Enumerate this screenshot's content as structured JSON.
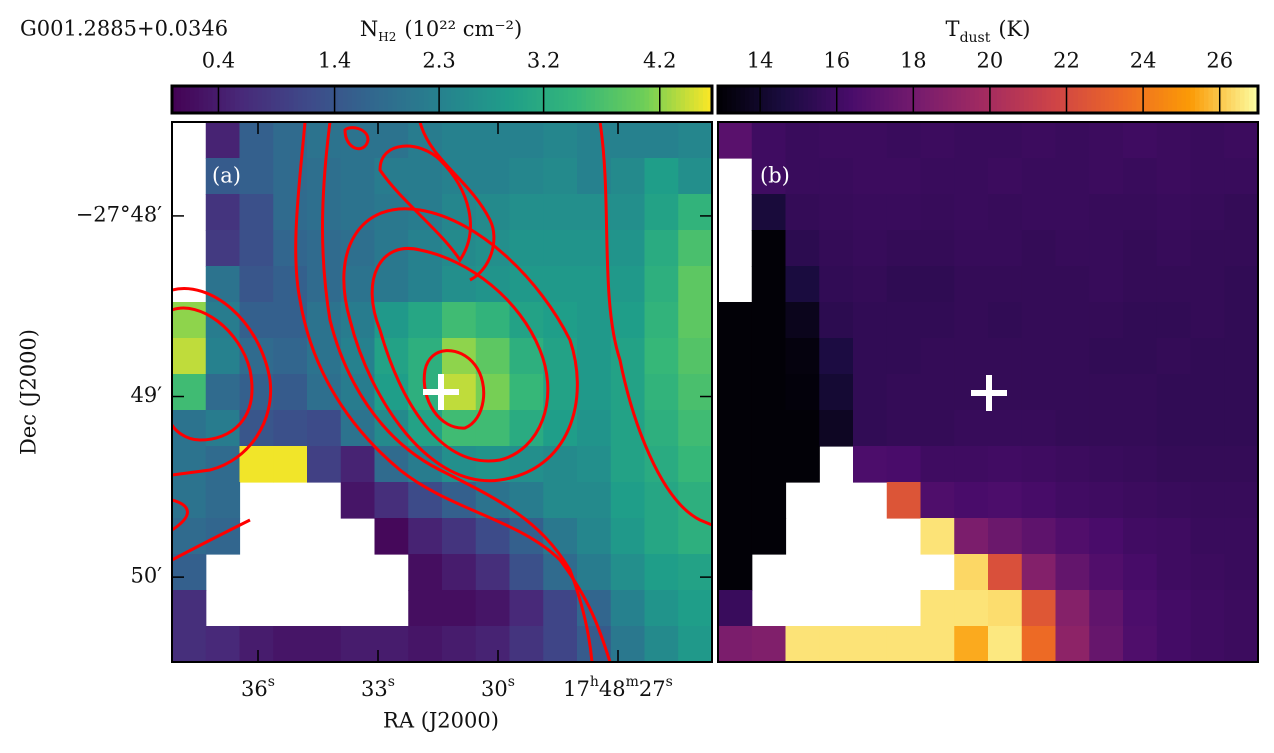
{
  "chart_data": [
    {
      "type": "heatmap",
      "title": "G001.2885+0.0346",
      "xlabel": "RA (J2000)",
      "ylabel": "Dec (J2000)",
      "panel_label": "(a)",
      "colormap": "viridis",
      "colorbar_label": {
        "symbol": "N",
        "subscript": "H2",
        "text": "(10²² cm⁻²)"
      },
      "vlim": [
        0.0,
        4.65
      ],
      "colorbar_ticks": [
        0.4,
        1.4,
        2.3,
        3.2,
        4.2
      ],
      "xlim": [
        38.15,
        24.65
      ],
      "ylim": [
        -1670.47,
        -1667.48
      ],
      "xticks": [
        {
          "value": 36,
          "label": "36s"
        },
        {
          "value": 33,
          "label": "33s"
        },
        {
          "value": 30,
          "label": "30s"
        },
        {
          "value": 27,
          "label": "17h48m27s"
        }
      ],
      "yticks": [
        {
          "value": -1668,
          "label": "−27°48′"
        },
        {
          "value": -1669,
          "label": "49′"
        },
        {
          "value": -1670,
          "label": "50′"
        }
      ],
      "z": [
        [
          null,
          0.5,
          1.6,
          1.8,
          2.0,
          2.0,
          2.0,
          2.2,
          2.3,
          2.3,
          2.3,
          2.4,
          2.3,
          2.3,
          2.3,
          2.4
        ],
        [
          null,
          1.5,
          1.6,
          1.8,
          1.9,
          2.0,
          2.2,
          2.2,
          2.3,
          2.3,
          2.4,
          2.5,
          2.3,
          2.5,
          2.9,
          2.6
        ],
        [
          null,
          0.8,
          1.3,
          1.8,
          1.9,
          2.0,
          2.1,
          2.2,
          2.4,
          2.5,
          2.6,
          2.6,
          2.6,
          2.6,
          3.0,
          3.4
        ],
        [
          null,
          0.9,
          1.3,
          1.7,
          1.8,
          1.9,
          2.1,
          2.3,
          2.5,
          2.6,
          2.7,
          2.7,
          2.7,
          2.7,
          3.2,
          3.7
        ],
        [
          null,
          2.0,
          1.4,
          1.6,
          1.8,
          2.0,
          2.1,
          2.3,
          2.6,
          2.7,
          2.8,
          2.8,
          2.8,
          2.8,
          3.3,
          3.9
        ],
        [
          4.2,
          2.2,
          1.6,
          1.6,
          2.0,
          2.2,
          2.8,
          3.1,
          3.6,
          3.4,
          3.0,
          2.9,
          2.8,
          2.9,
          3.4,
          3.9
        ],
        [
          4.4,
          2.3,
          1.8,
          1.7,
          2.0,
          2.3,
          3.0,
          3.3,
          4.2,
          3.9,
          3.3,
          3.0,
          2.8,
          3.0,
          3.5,
          3.8
        ],
        [
          3.6,
          1.8,
          1.6,
          1.5,
          1.9,
          2.2,
          2.9,
          3.3,
          4.4,
          4.1,
          3.5,
          3.0,
          2.8,
          3.0,
          3.4,
          3.7
        ],
        [
          2.0,
          2.2,
          1.4,
          1.3,
          1.2,
          2.0,
          2.5,
          3.0,
          3.6,
          3.6,
          3.2,
          2.9,
          2.7,
          3.0,
          3.3,
          3.6
        ],
        [
          2.0,
          1.8,
          4.6,
          4.6,
          1.0,
          0.5,
          1.8,
          2.2,
          2.6,
          2.7,
          2.6,
          2.5,
          2.6,
          3.0,
          3.2,
          3.5
        ],
        [
          2.0,
          1.8,
          null,
          null,
          null,
          0.3,
          0.7,
          1.2,
          1.6,
          2.0,
          2.2,
          2.5,
          2.5,
          2.9,
          3.1,
          3.3
        ],
        [
          1.8,
          1.7,
          null,
          null,
          null,
          null,
          0.1,
          0.5,
          0.8,
          1.2,
          1.6,
          2.1,
          2.4,
          2.8,
          3.1,
          3.3
        ],
        [
          1.6,
          null,
          null,
          null,
          null,
          null,
          null,
          0.2,
          0.4,
          0.7,
          1.3,
          1.8,
          2.2,
          2.6,
          2.9,
          3.0
        ],
        [
          0.7,
          null,
          null,
          null,
          null,
          null,
          null,
          0.2,
          0.2,
          0.3,
          0.6,
          1.1,
          1.7,
          2.3,
          2.7,
          2.9
        ],
        [
          0.7,
          0.6,
          0.4,
          0.3,
          0.3,
          0.4,
          0.4,
          0.3,
          0.4,
          0.5,
          0.8,
          1.1,
          1.5,
          2.1,
          2.5,
          2.8
        ]
      ]
    },
    {
      "type": "heatmap",
      "panel_label": "(b)",
      "colormap": "inferno",
      "colorbar_label": {
        "symbol": "T",
        "subscript": "dust",
        "text": "(K)"
      },
      "vlim": [
        12.9,
        27.0
      ],
      "colorbar_ticks": [
        14,
        16,
        18,
        20,
        22,
        24,
        26
      ],
      "z": [
        [
          17.0,
          16.0,
          15.8,
          15.9,
          15.9,
          15.8,
          15.9,
          15.8,
          15.8,
          15.9,
          15.8,
          15.9,
          16.0,
          15.9,
          15.8,
          15.9
        ],
        [
          null,
          16.0,
          15.8,
          15.8,
          15.9,
          15.9,
          15.8,
          15.8,
          15.9,
          15.8,
          15.8,
          15.9,
          15.8,
          15.9,
          15.8,
          15.8
        ],
        [
          null,
          14.5,
          15.6,
          15.7,
          15.8,
          15.8,
          15.7,
          15.8,
          15.7,
          15.8,
          15.8,
          15.7,
          15.7,
          15.8,
          15.7,
          15.6
        ],
        [
          null,
          13.0,
          15.3,
          15.6,
          15.7,
          15.6,
          15.6,
          15.7,
          15.7,
          15.6,
          15.7,
          15.7,
          15.6,
          15.7,
          15.6,
          15.6
        ],
        [
          null,
          13.0,
          14.6,
          15.5,
          15.6,
          15.4,
          15.4,
          15.6,
          15.6,
          15.6,
          15.6,
          15.7,
          15.6,
          15.6,
          15.6,
          15.5
        ],
        [
          13.0,
          13.0,
          13.6,
          15.3,
          15.5,
          15.5,
          15.5,
          15.6,
          15.5,
          15.6,
          15.6,
          15.6,
          15.5,
          15.5,
          15.6,
          15.5
        ],
        [
          13.0,
          13.0,
          13.2,
          14.7,
          15.5,
          15.5,
          15.6,
          15.6,
          15.6,
          15.6,
          15.6,
          15.5,
          15.5,
          15.6,
          15.5,
          15.5
        ],
        [
          13.0,
          13.0,
          13.1,
          14.3,
          15.5,
          15.6,
          15.6,
          15.6,
          15.6,
          15.6,
          15.6,
          15.6,
          15.6,
          15.5,
          15.5,
          15.5
        ],
        [
          13.0,
          13.0,
          13.0,
          13.8,
          15.5,
          15.6,
          15.6,
          15.7,
          15.7,
          15.7,
          15.6,
          15.6,
          15.6,
          15.5,
          15.5,
          15.5
        ],
        [
          13.0,
          13.0,
          13.0,
          null,
          16.5,
          16.4,
          16.0,
          16.0,
          16.1,
          16.0,
          15.9,
          15.8,
          15.7,
          15.6,
          15.6,
          15.6
        ],
        [
          13.0,
          13.0,
          null,
          null,
          null,
          22.5,
          16.6,
          16.4,
          16.5,
          16.3,
          16.1,
          16.0,
          15.9,
          15.8,
          15.7,
          15.7
        ],
        [
          13.0,
          13.0,
          null,
          null,
          null,
          null,
          26.5,
          18.3,
          17.7,
          17.2,
          16.7,
          16.4,
          16.1,
          16.0,
          15.8,
          15.8
        ],
        [
          13.0,
          null,
          null,
          null,
          null,
          null,
          null,
          26.3,
          22.3,
          18.6,
          17.4,
          16.7,
          16.3,
          16.0,
          15.9,
          15.8
        ],
        [
          15.8,
          null,
          null,
          null,
          null,
          null,
          26.5,
          26.5,
          26.4,
          22.6,
          18.7,
          17.3,
          16.5,
          16.2,
          16.0,
          15.9
        ],
        [
          18.3,
          18.5,
          26.5,
          26.5,
          26.5,
          26.5,
          26.5,
          25.5,
          26.6,
          23.5,
          19.0,
          17.5,
          16.6,
          16.2,
          16.0,
          15.9
        ]
      ]
    }
  ]
}
